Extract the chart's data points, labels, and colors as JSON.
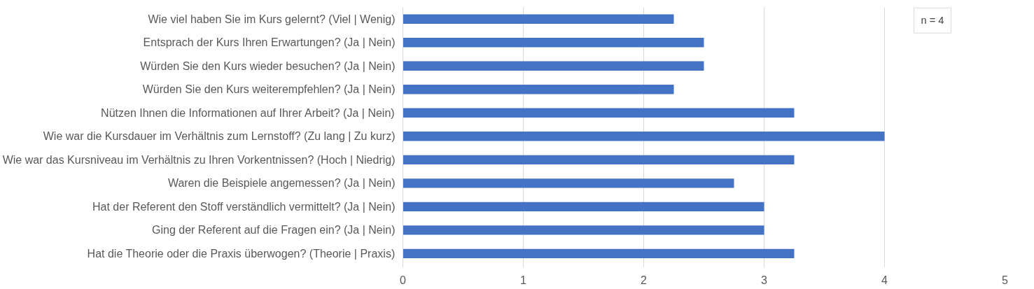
{
  "chart_data": {
    "type": "bar",
    "orientation": "horizontal",
    "categories": [
      "Wie viel haben Sie im Kurs gelernt? (Viel | Wenig)",
      "Entsprach der Kurs Ihren Erwartungen? (Ja | Nein)",
      "Würden Sie den Kurs wieder besuchen? (Ja | Nein)",
      "Würden Sie den Kurs weiterempfehlen? (Ja | Nein)",
      "Nützen Ihnen die Informationen auf Ihrer Arbeit? (Ja | Nein)",
      "Wie war die Kursdauer im Verhältnis zum Lernstoff? (Zu lang | Zu kurz)",
      "Wie war das Kursniveau im Verhältnis zu Ihren Vorkentnissen? (Hoch | Niedrig)",
      "Waren die Beispiele angemessen? (Ja | Nein)",
      "Hat der Referent den Stoff verständlich vermittelt? (Ja | Nein)",
      "Ging der Referent auf die Fragen ein? (Ja | Nein)",
      "Hat die Theorie oder die Praxis überwogen? (Theorie | Praxis)"
    ],
    "values": [
      2.25,
      2.5,
      2.5,
      2.25,
      3.25,
      4,
      3.25,
      2.75,
      3,
      3,
      3.25
    ],
    "color": "#4472c4",
    "xlim": [
      0,
      5
    ],
    "xticks": [
      0,
      1,
      2,
      3,
      4,
      5
    ],
    "grid": "x",
    "annotations": [
      "n = 4"
    ]
  }
}
